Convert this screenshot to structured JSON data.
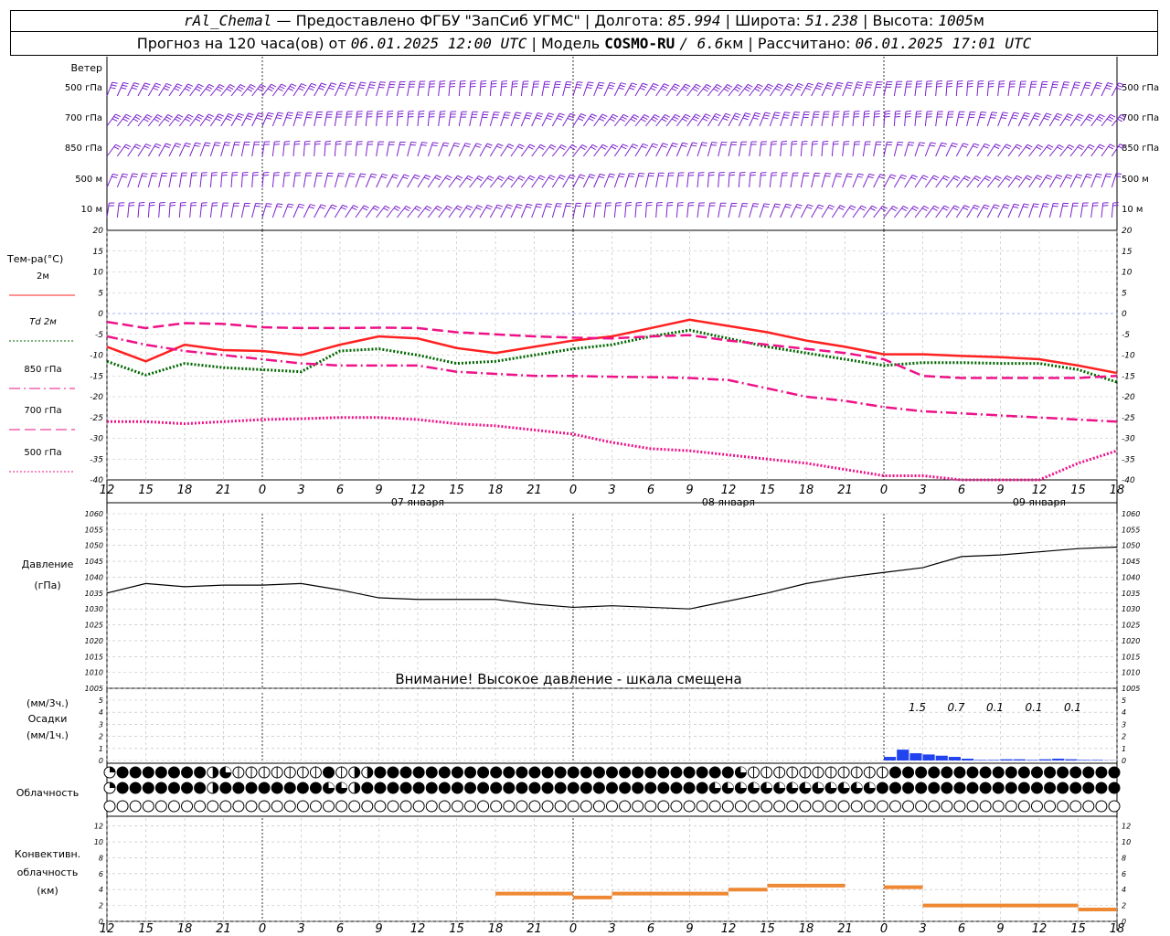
{
  "header": {
    "station": "rAl_Chemal",
    "dash": "—",
    "provider": "Предоставлено ФГБУ \"ЗапСиб УГМС\"",
    "sep": "|",
    "lon_label": "Долгота:",
    "lon_value": "85.994",
    "lat_label": "Широта:",
    "lat_value": "51.238",
    "alt_label": "Высота:",
    "alt_value": "1005",
    "alt_unit": "м",
    "forecast_label": "Прогноз на 120 часа(ов) от",
    "forecast_time": "06.01.2025 12:00 UTC",
    "model_label": "Модель",
    "model_name": "COSMO-RU",
    "model_res": "/ 6.6",
    "model_res_unit": "км",
    "calc_label": "Рассчитано:",
    "calc_time": "06.01.2025 17:01 UTC"
  },
  "wind_panel": {
    "title": "Ветер",
    "levels": [
      "500 гПа",
      "700 гПа",
      "850 гПа",
      "500 м",
      "10  м"
    ]
  },
  "temp_panel": {
    "title": "Тем-ра(°C)",
    "yticks": [
      20,
      15,
      10,
      5,
      0,
      -5,
      -10,
      -15,
      -20,
      -25,
      -30,
      -35,
      -40
    ],
    "legend": [
      {
        "label": "2м",
        "color": "#ff2020",
        "dash": "solid"
      },
      {
        "label": "Td  2м",
        "color": "#006600",
        "dash": "dotted"
      },
      {
        "label": "850 гПа",
        "color": "#ee1188",
        "dash": "dashdot"
      },
      {
        "label": "700 гПа",
        "color": "#ee1188",
        "dash": "dashed"
      },
      {
        "label": "500 гПа",
        "color": "#ee1188",
        "dash": "dotted"
      }
    ]
  },
  "x_axis": {
    "ticks": [
      "12",
      "15",
      "18",
      "21",
      "0",
      "3",
      "6",
      "9",
      "12",
      "15",
      "18",
      "21",
      "0",
      "3",
      "6",
      "9",
      "12",
      "15",
      "18",
      "21",
      "0",
      "3",
      "6",
      "9",
      "12",
      "15",
      "18"
    ],
    "days": [
      "07 января",
      "08 января",
      "09 января"
    ]
  },
  "pressure_panel": {
    "title": "Давление",
    "unit": "(гПа)",
    "yticks": [
      1060,
      1055,
      1050,
      1045,
      1040,
      1035,
      1030,
      1025,
      1020,
      1015,
      1010,
      1005
    ],
    "warning": "Внимание! Высокое давление - шкала смещена"
  },
  "precip_panel": {
    "label1": "(мм/3ч.)",
    "label2": "Осадки",
    "label3": "(мм/1ч.)",
    "yticks": [
      5,
      4,
      3,
      2,
      1,
      0
    ],
    "annotations": [
      "1.5",
      "0.7",
      "0.1",
      "0.1",
      "0.1"
    ],
    "color": "#2244ee"
  },
  "cloud_panel": {
    "title": "Облачность",
    "rows": [
      "Lfffffffrqlllllllflrrffffffffffffffffffffffffffffqlllllllllllffffffffffffffffffffffffffffffffffffffffff",
      "Lfffffffrffffffffqqrfffffffffffffffffffffffffffqqqqqqqqqqqqqffffffffffffffffffffffffffffff",
      "ooooooooooooooooooooooooooooooooooooooooooooooooooooooooooooooooooooooooo"
    ]
  },
  "conv_panel": {
    "title1": "Конвективн.",
    "title2": "облачность",
    "title3": "(км)",
    "yticks": [
      12,
      10,
      8,
      6,
      4,
      2,
      0
    ],
    "color": "#ee8833"
  },
  "chart_data": [
    {
      "type": "line",
      "title": "Тем-ра(°C)",
      "x_hours": [
        0,
        3,
        6,
        9,
        12,
        15,
        18,
        21,
        24,
        27,
        30,
        33,
        36,
        39,
        42,
        45,
        48,
        51,
        54,
        57,
        60,
        63,
        66,
        69,
        72,
        75,
        78
      ],
      "ylim": [
        -40,
        20
      ],
      "series": [
        {
          "name": "2м",
          "values": [
            -8,
            -11.5,
            -7.5,
            -8.8,
            -9,
            -10,
            -7.5,
            -5.5,
            -6,
            -8.3,
            -9.5,
            -8,
            -6.5,
            -5.5,
            -3.5,
            -1.5,
            -3,
            -4.5,
            -6.5,
            -8,
            -9.8,
            -9.8,
            -10.2,
            -10.5,
            -11,
            -12.5,
            -14.3
          ]
        },
        {
          "name": "Td  2м",
          "values": [
            -11.5,
            -14.8,
            -12,
            -13,
            -13.5,
            -14,
            -9,
            -8.5,
            -10,
            -12,
            -11.5,
            -10,
            -8.5,
            -7.5,
            -5.5,
            -4,
            -6,
            -8,
            -9.5,
            -11,
            -12.5,
            -11.8,
            -11.8,
            -12,
            -12,
            -13.5,
            -16.5
          ]
        },
        {
          "name": "850 гПа",
          "values": [
            -5.5,
            -7.5,
            -9,
            -10,
            -11,
            -12,
            -12.5,
            -12.5,
            -12.5,
            -14,
            -14.5,
            -15,
            -15,
            -15.2,
            -15.3,
            -15.5,
            -16,
            -18,
            -20,
            -21,
            -22.5,
            -23.5,
            -24,
            -24.5,
            -25,
            -25.5,
            -26
          ]
        },
        {
          "name": "700 гПа",
          "values": [
            -2,
            -3.5,
            -2.3,
            -2.5,
            -3.3,
            -3.5,
            -3.5,
            -3.4,
            -3.5,
            -4.5,
            -5,
            -5.5,
            -5.8,
            -6,
            -5.5,
            -5.2,
            -6.5,
            -7.5,
            -8.5,
            -9.5,
            -11,
            -15,
            -15.5,
            -15.5,
            -15.5,
            -15.5,
            -15
          ]
        },
        {
          "name": "500 гПа",
          "values": [
            -26,
            -26,
            -26.5,
            -26,
            -25.5,
            -25.3,
            -25,
            -25,
            -25.5,
            -26.5,
            -27,
            -28,
            -29,
            -31,
            -32.5,
            -33,
            -34,
            -35,
            -36,
            -37.5,
            -39,
            -39,
            -40,
            -41,
            -40,
            -36,
            -33
          ]
        }
      ]
    },
    {
      "type": "line",
      "title": "Давление",
      "x_hours": [
        0,
        3,
        6,
        9,
        12,
        15,
        18,
        21,
        24,
        27,
        30,
        33,
        36,
        39,
        42,
        45,
        48,
        51,
        54,
        57,
        60,
        63,
        66,
        69,
        72,
        75,
        78
      ],
      "ylim": [
        1005,
        1060
      ],
      "series": [
        {
          "name": "",
          "values": [
            1035,
            1038,
            1037,
            1037.5,
            1037.5,
            1038,
            1036,
            1033.5,
            1033,
            1033,
            1033,
            1031.5,
            1030.5,
            1031,
            1030.5,
            1030,
            1032.5,
            1035,
            1038,
            1040,
            1041.5,
            1043,
            1046.5,
            1047,
            1048,
            1049,
            1049.5
          ]
        }
      ]
    },
    {
      "type": "bar",
      "title": "Осадки",
      "x_hours": [
        60,
        61,
        62,
        63,
        64,
        65,
        66,
        67,
        68,
        69,
        70,
        71,
        72,
        73,
        74,
        75,
        76,
        77,
        78
      ],
      "ylim": [
        0,
        5
      ],
      "values": [
        0.3,
        0.9,
        0.6,
        0.5,
        0.4,
        0.3,
        0.15,
        0.05,
        0.05,
        0.1,
        0.1,
        0.05,
        0.1,
        0.15,
        0.1,
        0.05,
        0.05,
        0.02,
        0
      ]
    },
    {
      "type": "line",
      "title": "Конвективн. облачность (км)",
      "x_hours": [
        30,
        33,
        36,
        39,
        42,
        45,
        48,
        51,
        54,
        57,
        60,
        63,
        66,
        69,
        72,
        75,
        78
      ],
      "ylim": [
        0,
        13
      ],
      "series": [
        {
          "name": "",
          "values": [
            3.5,
            3.5,
            3,
            3.5,
            3.5,
            3.5,
            4,
            4.5,
            4.5,
            null,
            4.3,
            2,
            2,
            2,
            2,
            1.5,
            3
          ]
        }
      ]
    }
  ]
}
